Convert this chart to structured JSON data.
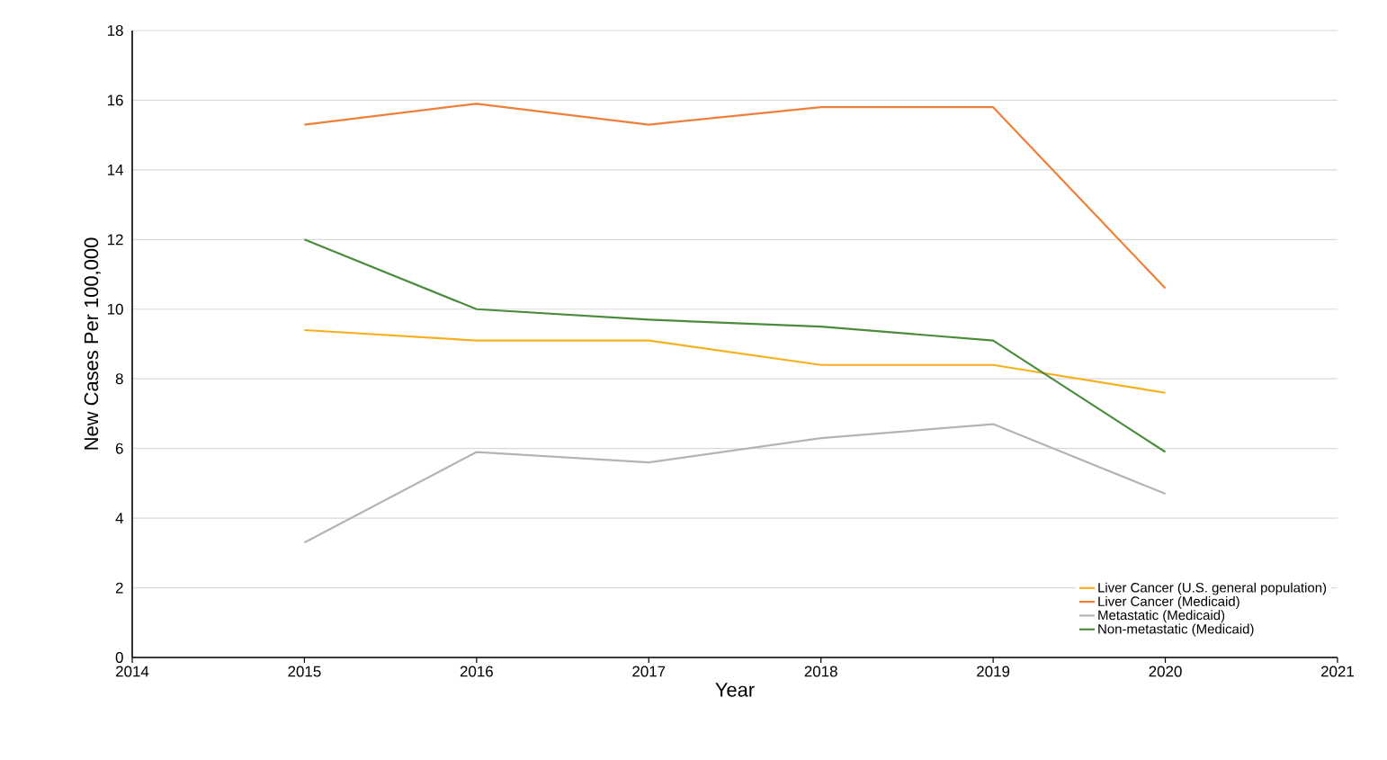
{
  "chart_data": {
    "type": "line",
    "xlabel": "Year",
    "ylabel": "New Cases Per 100,000",
    "x": [
      2015,
      2016,
      2017,
      2018,
      2019,
      2020
    ],
    "series": [
      {
        "name": "Liver Cancer (U.S. general population)",
        "color": "#f7b01d",
        "values": [
          9.4,
          9.1,
          9.1,
          8.4,
          8.4,
          7.6
        ]
      },
      {
        "name": "Liver Cancer (Medicaid)",
        "color": "#f07f3a",
        "values": [
          15.3,
          15.9,
          15.3,
          15.8,
          15.8,
          10.6
        ]
      },
      {
        "name": "Metastatic (Medicaid)",
        "color": "#b0b5b8",
        "values": [
          3.3,
          5.9,
          5.6,
          6.3,
          6.7,
          4.7
        ]
      },
      {
        "name": "Non-metastatic (Medicaid)",
        "color": "#4a8c3c",
        "values": [
          12.0,
          10.0,
          9.7,
          9.5,
          9.1,
          5.9
        ]
      }
    ],
    "xlim": [
      2014,
      2021
    ],
    "xticks": [
      2014,
      2015,
      2016,
      2017,
      2018,
      2019,
      2020,
      2021
    ],
    "ylim": [
      0,
      18
    ],
    "yticks": [
      0,
      2,
      4,
      6,
      8,
      10,
      12,
      14,
      16,
      18
    ],
    "grid": "y",
    "legend": "bottom right",
    "marker": "none",
    "line_style": "solid"
  }
}
